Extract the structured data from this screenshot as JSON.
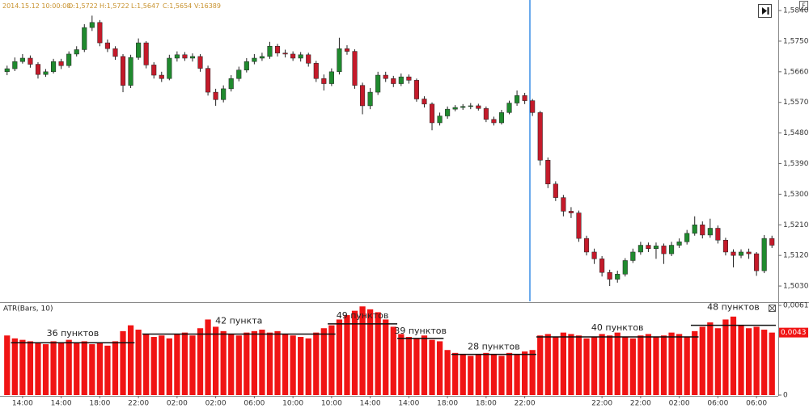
{
  "chart_data": [
    {
      "type": "candlestick",
      "info": [
        "2014.15.12 10:00:00",
        "O:1,5722",
        "H:1,5722",
        "L:1,5647",
        "C:1,5654",
        "V:16389"
      ],
      "corner_label": "F",
      "ylim": [
        1.4985,
        1.5871
      ],
      "yticks": [
        {
          "value": 1.584,
          "label": "1,5840"
        },
        {
          "value": 1.575,
          "label": "1,5750"
        },
        {
          "value": 1.566,
          "label": "1,5660"
        },
        {
          "value": 1.557,
          "label": "1,5570"
        },
        {
          "value": 1.548,
          "label": "1,5480"
        },
        {
          "value": 1.539,
          "label": "1,5390"
        },
        {
          "value": 1.53,
          "label": "1,5300"
        },
        {
          "value": 1.521,
          "label": "1,5210"
        },
        {
          "value": 1.512,
          "label": "1,5120"
        },
        {
          "value": 1.503,
          "label": "1,5030"
        }
      ],
      "up_color": "#1f8a2e",
      "down_color": "#c41a2a",
      "open": [
        1.566,
        1.5669,
        1.569,
        1.57,
        1.5682,
        1.5652,
        1.566,
        1.569,
        1.5678,
        1.5712,
        1.5725,
        1.579,
        1.5805,
        1.5745,
        1.5728,
        1.5705,
        1.562,
        1.5702,
        1.5745,
        1.568,
        1.565,
        1.564,
        1.57,
        1.571,
        1.57,
        1.5705,
        1.567,
        1.56,
        1.5578,
        1.561,
        1.564,
        1.5665,
        1.569,
        1.57,
        1.5705,
        1.5735,
        1.5715,
        1.5712,
        1.57,
        1.571,
        1.5685,
        1.564,
        1.5625,
        1.566,
        1.5728,
        1.572,
        1.562,
        1.556,
        1.56,
        1.565,
        1.564,
        1.5625,
        1.5645,
        1.5635,
        1.558,
        1.5565,
        1.551,
        1.553,
        1.555,
        1.5555,
        1.5558,
        1.556,
        1.5552,
        1.552,
        1.551,
        1.554,
        1.5568,
        1.559,
        1.5575,
        1.554,
        1.54,
        1.533,
        1.529,
        1.525,
        1.5245,
        1.517,
        1.513,
        1.511,
        1.507,
        1.505,
        1.5065,
        1.5105,
        1.513,
        1.515,
        1.514,
        1.5148,
        1.5125,
        1.515,
        1.516,
        1.5185,
        1.521,
        1.518,
        1.52,
        1.5165,
        1.513,
        1.512,
        1.513,
        1.5125,
        1.5075,
        1.517
      ],
      "high": [
        1.5678,
        1.5702,
        1.5712,
        1.5708,
        1.5688,
        1.5668,
        1.5698,
        1.5698,
        1.572,
        1.5735,
        1.58,
        1.5825,
        1.5812,
        1.5755,
        1.5735,
        1.5712,
        1.571,
        1.5758,
        1.575,
        1.5688,
        1.566,
        1.571,
        1.572,
        1.5718,
        1.5714,
        1.5712,
        1.5678,
        1.561,
        1.562,
        1.565,
        1.5675,
        1.57,
        1.5712,
        1.5716,
        1.5748,
        1.5742,
        1.5725,
        1.572,
        1.5718,
        1.5716,
        1.5692,
        1.5652,
        1.567,
        1.576,
        1.5738,
        1.5726,
        1.5628,
        1.5612,
        1.566,
        1.566,
        1.5648,
        1.5655,
        1.5652,
        1.564,
        1.5588,
        1.557,
        1.554,
        1.5558,
        1.5562,
        1.5565,
        1.5568,
        1.5566,
        1.5558,
        1.5528,
        1.5548,
        1.5575,
        1.5605,
        1.5598,
        1.558,
        1.5545,
        1.5408,
        1.5338,
        1.5298,
        1.5262,
        1.5252,
        1.5178,
        1.514,
        1.5118,
        1.5078,
        1.5075,
        1.5112,
        1.514,
        1.516,
        1.5158,
        1.5158,
        1.5155,
        1.516,
        1.517,
        1.5195,
        1.5235,
        1.522,
        1.5228,
        1.5208,
        1.5172,
        1.5138,
        1.5138,
        1.514,
        1.513,
        1.518,
        1.5178
      ],
      "low": [
        1.565,
        1.5662,
        1.5684,
        1.5672,
        1.564,
        1.5645,
        1.5655,
        1.5668,
        1.5672,
        1.5705,
        1.5718,
        1.578,
        1.5735,
        1.5718,
        1.5695,
        1.56,
        1.5612,
        1.5695,
        1.567,
        1.564,
        1.563,
        1.5635,
        1.569,
        1.5692,
        1.569,
        1.566,
        1.559,
        1.556,
        1.557,
        1.5602,
        1.5632,
        1.5658,
        1.5682,
        1.5692,
        1.5698,
        1.5705,
        1.5702,
        1.5692,
        1.569,
        1.5675,
        1.563,
        1.5605,
        1.5618,
        1.5652,
        1.571,
        1.561,
        1.5535,
        1.555,
        1.5592,
        1.563,
        1.5615,
        1.5618,
        1.5625,
        1.5572,
        1.5555,
        1.5488,
        1.5502,
        1.5522,
        1.5544,
        1.5548,
        1.555,
        1.5546,
        1.5512,
        1.5502,
        1.5505,
        1.5535,
        1.556,
        1.5565,
        1.553,
        1.5385,
        1.5318,
        1.528,
        1.5235,
        1.523,
        1.516,
        1.512,
        1.5095,
        1.5058,
        1.503,
        1.504,
        1.5058,
        1.5098,
        1.5122,
        1.513,
        1.511,
        1.5095,
        1.5118,
        1.5142,
        1.5152,
        1.5178,
        1.517,
        1.5172,
        1.5155,
        1.512,
        1.5085,
        1.5112,
        1.511,
        1.506,
        1.5068,
        1.5142
      ],
      "close": [
        1.5669,
        1.569,
        1.57,
        1.5682,
        1.5652,
        1.566,
        1.569,
        1.5678,
        1.5712,
        1.5725,
        1.579,
        1.5805,
        1.5745,
        1.5728,
        1.5705,
        1.562,
        1.5702,
        1.5745,
        1.568,
        1.565,
        1.564,
        1.57,
        1.571,
        1.57,
        1.5705,
        1.567,
        1.56,
        1.5578,
        1.561,
        1.564,
        1.5665,
        1.569,
        1.57,
        1.5705,
        1.5735,
        1.5715,
        1.5712,
        1.57,
        1.571,
        1.5685,
        1.564,
        1.5625,
        1.566,
        1.5728,
        1.572,
        1.562,
        1.556,
        1.56,
        1.565,
        1.564,
        1.5625,
        1.5645,
        1.5635,
        1.558,
        1.5565,
        1.551,
        1.553,
        1.555,
        1.5555,
        1.5558,
        1.556,
        1.5552,
        1.552,
        1.551,
        1.554,
        1.5568,
        1.559,
        1.5575,
        1.554,
        1.54,
        1.533,
        1.529,
        1.525,
        1.5245,
        1.517,
        1.513,
        1.511,
        1.507,
        1.505,
        1.5065,
        1.5105,
        1.513,
        1.515,
        1.514,
        1.5148,
        1.5125,
        1.515,
        1.516,
        1.5185,
        1.521,
        1.518,
        1.52,
        1.5165,
        1.513,
        1.512,
        1.513,
        1.5125,
        1.5075,
        1.517,
        1.515
      ]
    },
    {
      "type": "bar",
      "title": "ATR(Bars, 10)",
      "color": "#f01414",
      "ylim": [
        0,
        0.00617
      ],
      "yticks": [
        {
          "value": 0.00617,
          "label": "0,00617..."
        },
        0
      ],
      "categories": [
        null,
        null,
        "14:00",
        null,
        null,
        null,
        null,
        "14:00",
        null,
        null,
        null,
        null,
        "18:00",
        null,
        null,
        null,
        null,
        "22:00",
        null,
        null,
        null,
        null,
        "02:00",
        null,
        null,
        null,
        null,
        "02:00",
        null,
        null,
        null,
        null,
        "06:00",
        null,
        null,
        null,
        null,
        "10:00",
        null,
        null,
        null,
        null,
        "10:00",
        null,
        null,
        null,
        null,
        "14:00",
        null,
        null,
        null,
        null,
        "14:00",
        null,
        null,
        null,
        null,
        "18:00",
        null,
        null,
        null,
        null,
        "18:00",
        null,
        null,
        null,
        null,
        "22:00",
        null,
        null,
        null,
        null,
        null,
        null,
        null,
        null,
        null,
        "22:00",
        null,
        null,
        null,
        null,
        "22:00",
        null,
        null,
        null,
        null,
        "02:00",
        null,
        null,
        null,
        null,
        "06:00",
        null,
        null,
        null,
        null,
        "06:00",
        null,
        null
      ],
      "values": [
        0.0041,
        0.0039,
        0.0038,
        0.0037,
        0.0036,
        0.0035,
        0.0037,
        0.0036,
        0.0038,
        0.0036,
        0.0037,
        0.0035,
        0.0036,
        0.0034,
        0.0037,
        0.0044,
        0.0048,
        0.0045,
        0.0042,
        0.004,
        0.0041,
        0.0039,
        0.0042,
        0.0043,
        0.0041,
        0.0046,
        0.0052,
        0.0047,
        0.0044,
        0.0042,
        0.0041,
        0.0043,
        0.0044,
        0.0045,
        0.0043,
        0.0044,
        0.0042,
        0.0041,
        0.004,
        0.0039,
        0.0043,
        0.0046,
        0.0048,
        0.0052,
        0.0055,
        0.0058,
        0.0061,
        0.0059,
        0.0057,
        0.0052,
        0.0047,
        0.0042,
        0.004,
        0.0039,
        0.0041,
        0.0038,
        0.0037,
        0.0031,
        0.0029,
        0.0028,
        0.0027,
        0.0028,
        0.0029,
        0.0028,
        0.0027,
        0.0029,
        0.0028,
        0.003,
        0.0031,
        0.0041,
        0.0042,
        0.004,
        0.0043,
        0.0042,
        0.0041,
        0.0039,
        0.004,
        0.0042,
        0.0041,
        0.0043,
        0.004,
        0.0039,
        0.0041,
        0.0042,
        0.004,
        0.0041,
        0.0043,
        0.0042,
        0.004,
        0.0044,
        0.0047,
        0.005,
        0.0046,
        0.0052,
        0.0054,
        0.0048,
        0.0046,
        0.0047,
        0.0045,
        0.0043
      ],
      "value_labels": [
        null,
        null,
        null,
        null,
        null,
        null,
        null,
        null,
        null,
        null,
        null,
        null,
        null,
        null,
        null,
        null,
        null,
        null,
        null,
        null,
        null,
        null,
        null,
        null,
        null,
        null,
        null,
        null,
        null,
        null,
        null,
        null,
        null,
        null,
        null,
        null,
        null,
        null,
        null,
        null,
        null,
        null,
        null,
        null,
        null,
        null,
        null,
        null,
        null,
        null,
        null,
        null,
        null,
        null,
        null,
        null,
        null,
        null,
        null,
        null,
        null,
        null,
        null,
        null,
        null,
        null,
        null,
        null,
        null,
        null,
        null,
        null,
        null,
        null,
        null,
        null,
        null,
        null,
        null,
        null,
        null,
        null,
        null,
        null,
        null,
        null,
        null,
        null,
        null,
        null,
        null,
        null,
        null,
        null,
        null,
        null,
        null,
        null,
        null,
        "0,0043"
      ],
      "annotations": [
        {
          "text": "36 пунктов",
          "level": 0.0036
        },
        {
          "text": "42 пункта",
          "level": 0.0042
        },
        {
          "text": "49 пунктов",
          "level": 0.0049
        },
        {
          "text": "39 пунктов",
          "level": 0.0039
        },
        {
          "text": "28 пунктов",
          "level": 0.0028
        },
        {
          "text": "40 пунктов",
          "level": 0.004
        },
        {
          "text": "48 пунктов",
          "level": 0.0048
        }
      ]
    }
  ]
}
